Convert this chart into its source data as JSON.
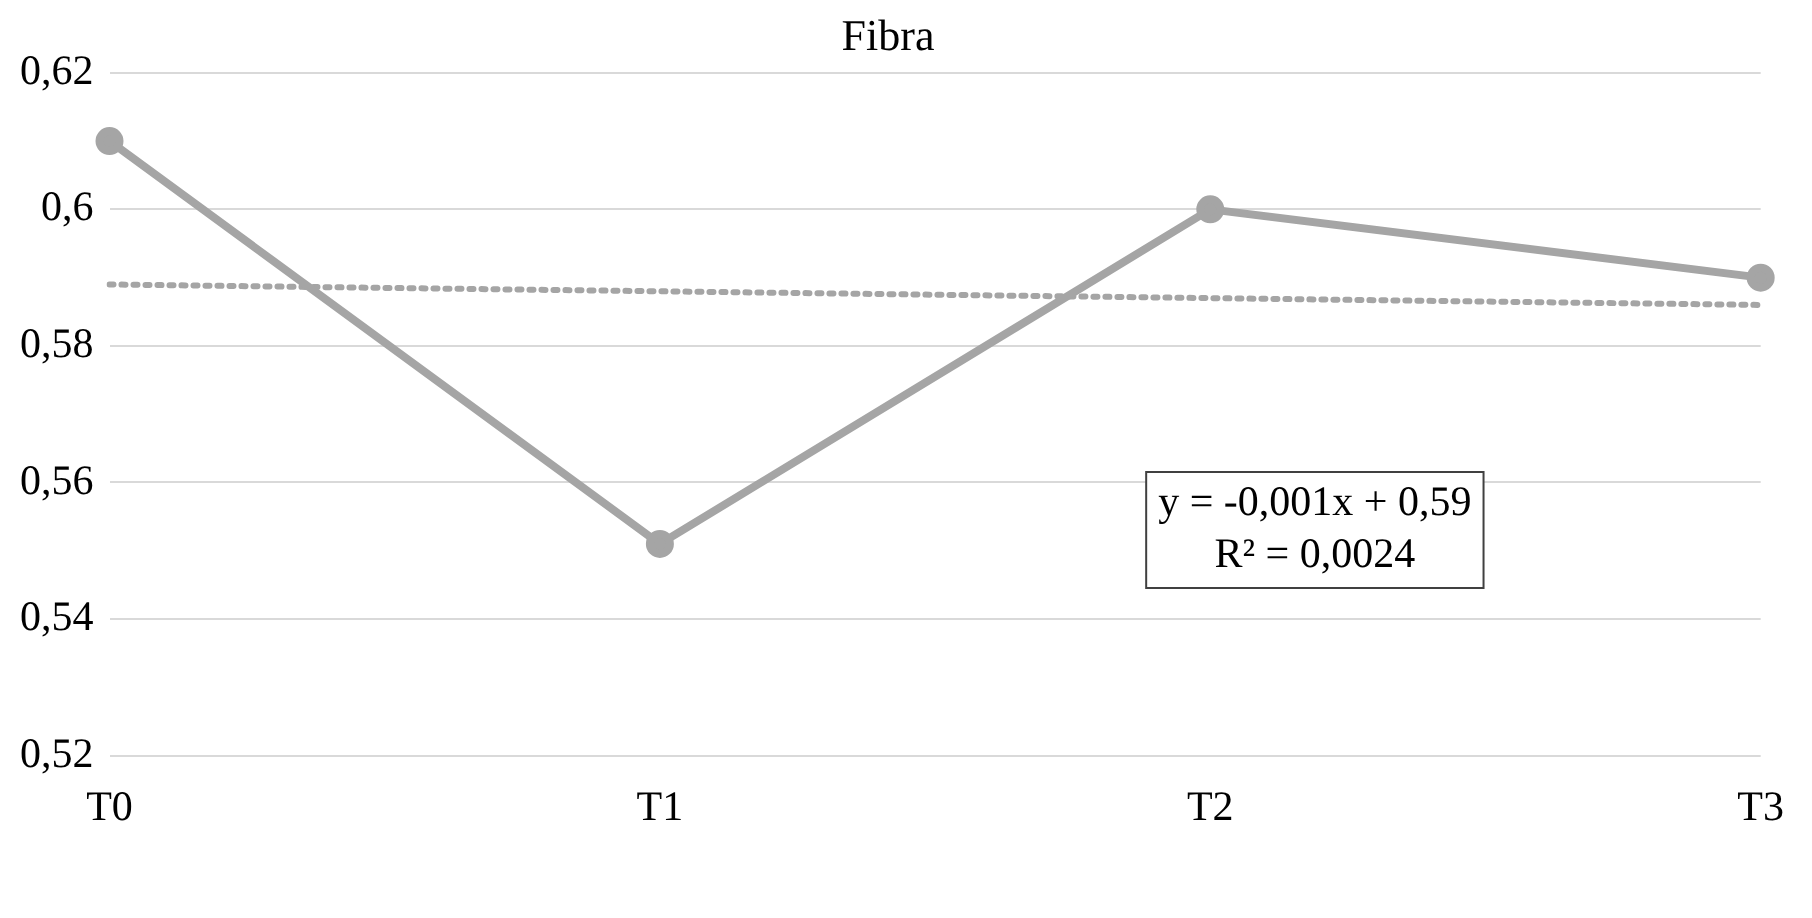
{
  "chart_data": {
    "type": "line",
    "title": "Fibra",
    "categories": [
      "T0",
      "T1",
      "T2",
      "T3"
    ],
    "series": [
      {
        "color": "#a5a5a5",
        "values": [
          0.61,
          0.551,
          0.6,
          0.59
        ],
        "marker": "circle",
        "line_style": "solid"
      },
      {
        "type": "line",
        "color": "#a5a5a5",
        "values": [
          0.589,
          0.588,
          0.587,
          0.586
        ],
        "marker": "none",
        "line_style": "dotted"
      }
    ],
    "ylim": [
      0.52,
      0.62
    ],
    "yticks": [
      {
        "value": 0.52,
        "label": "0,52"
      },
      {
        "value": 0.54,
        "label": "0,54"
      },
      {
        "value": 0.56,
        "label": "0,56"
      },
      {
        "value": 0.58,
        "label": "0,58"
      },
      {
        "value": 0.6,
        "label": "0,6"
      },
      {
        "value": 0.62,
        "label": "0,62"
      }
    ],
    "grid": "y",
    "legend": false,
    "annotations": [
      "y = -0,001x + 0,59",
      "R² = 0,0024"
    ]
  }
}
